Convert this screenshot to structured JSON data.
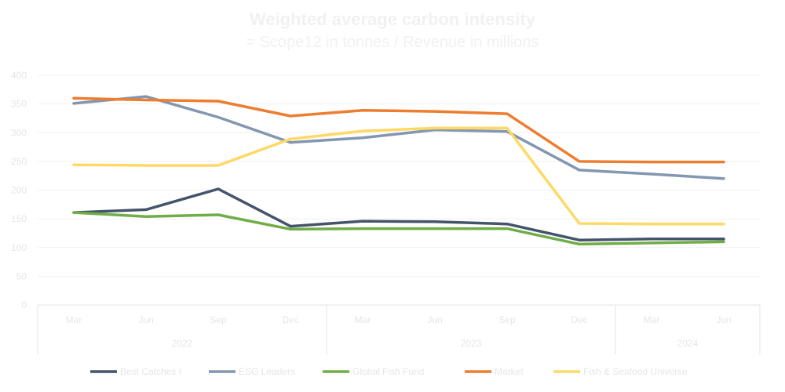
{
  "title": "Weighted average carbon intensity",
  "subtitle": "= Scope12 in tonnes / Revenue in millions",
  "colors": {
    "background": "#ffffff",
    "title": "#f1f1f1",
    "grid": "#f0f0f0",
    "axis_text": "#e6e6e6"
  },
  "chart_data": {
    "type": "line",
    "title": "Weighted average carbon intensity",
    "subtitle": "= Scope12 in tonnes / Revenue in millions",
    "xlabel": "",
    "ylabel": "",
    "ylim": [
      0,
      400
    ],
    "yticks": [
      0,
      50,
      100,
      150,
      200,
      250,
      300,
      350,
      400
    ],
    "grid": true,
    "legend_position": "bottom",
    "categories": [
      "Mar",
      "Jun",
      "Sep",
      "Dec",
      "Mar",
      "Jun",
      "Sep",
      "Dec",
      "Mar",
      "Jun"
    ],
    "groups": [
      {
        "label": "2022",
        "count": 4
      },
      {
        "label": "2023",
        "count": 4
      },
      {
        "label": "2024",
        "count": 2
      }
    ],
    "series": [
      {
        "name": "Best Catches I",
        "color": "#44546a",
        "values": [
          161,
          166,
          202,
          137,
          146,
          145,
          141,
          113,
          115,
          115
        ]
      },
      {
        "name": "ESG Leaders",
        "color": "#8497b0",
        "values": [
          351,
          363,
          327,
          283,
          291,
          305,
          302,
          235,
          228,
          220
        ]
      },
      {
        "name": "Global Fish Fund",
        "color": "#70ad47",
        "values": [
          161,
          154,
          157,
          132,
          133,
          133,
          133,
          106,
          108,
          110
        ]
      },
      {
        "name": "Market",
        "color": "#ed7d31",
        "values": [
          360,
          357,
          355,
          329,
          339,
          337,
          333,
          250,
          249,
          249
        ]
      },
      {
        "name": "Fish & Seafood Universe",
        "color": "#ffd966",
        "values": [
          244,
          243,
          243,
          289,
          303,
          308,
          308,
          142,
          141,
          141
        ]
      }
    ]
  }
}
